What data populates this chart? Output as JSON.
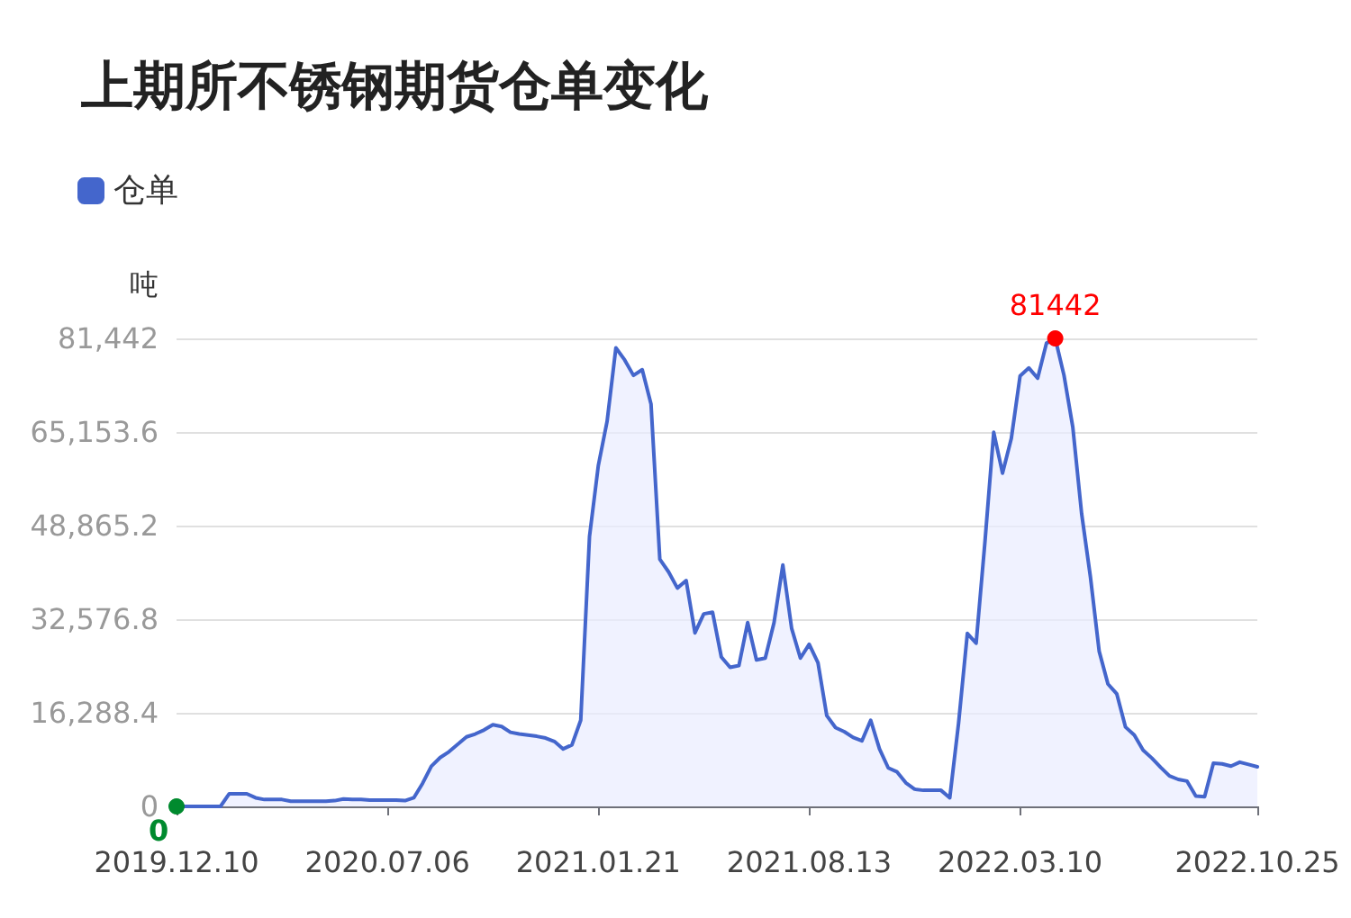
{
  "chart_data": {
    "type": "area",
    "title": "上期所不锈钢期货仓单变化",
    "ylabel": "吨",
    "categories": [
      "2019.12.10",
      null,
      null,
      null,
      null,
      null,
      null,
      null,
      null,
      null,
      null,
      null,
      null,
      null,
      null,
      null,
      null,
      null,
      null,
      null,
      null,
      null,
      null,
      null,
      "2020.07.06",
      null,
      null,
      null,
      null,
      null,
      null,
      null,
      null,
      null,
      null,
      null,
      null,
      null,
      null,
      null,
      null,
      null,
      null,
      null,
      null,
      null,
      null,
      null,
      "2021.01.21",
      null,
      null,
      null,
      null,
      null,
      null,
      null,
      null,
      null,
      null,
      null,
      null,
      null,
      null,
      null,
      null,
      null,
      null,
      null,
      null,
      null,
      null,
      null,
      "2021.08.13",
      null,
      null,
      null,
      null,
      null,
      null,
      null,
      null,
      null,
      null,
      null,
      null,
      null,
      null,
      null,
      null,
      null,
      null,
      null,
      null,
      null,
      null,
      null,
      "2022.03.10",
      null,
      null,
      null,
      null,
      null,
      null,
      null,
      null,
      null,
      null,
      null,
      null,
      null,
      null,
      null,
      null,
      null,
      null,
      null,
      null,
      null,
      null,
      null,
      null,
      null,
      null,
      "2022.10.25"
    ],
    "series": [
      {
        "name": "仓单",
        "color": "#4466cc",
        "values": [
          0,
          0,
          0,
          0,
          0,
          0,
          2200,
          2200,
          2200,
          1500,
          1200,
          1200,
          1200,
          900,
          900,
          900,
          900,
          900,
          1000,
          1300,
          1200,
          1200,
          1100,
          1100,
          1100,
          1100,
          1000,
          1500,
          4000,
          7000,
          8500,
          9500,
          10800,
          12100,
          12600,
          13300,
          14200,
          13900,
          12900,
          12600,
          12400,
          12200,
          11900,
          11300,
          10000,
          10700,
          15000,
          47000,
          59300,
          67000,
          79800,
          77700,
          75000,
          76000,
          70000,
          43000,
          40800,
          38000,
          39300,
          30200,
          33500,
          33800,
          26000,
          24200,
          24500,
          32000,
          25500,
          25800,
          32000,
          42000,
          31000,
          25800,
          28200,
          25000,
          15800,
          13700,
          13000,
          12000,
          11400,
          15000,
          10000,
          6700,
          6000,
          4100,
          3000,
          2800,
          2800,
          2800,
          1500,
          14500,
          30100,
          28400,
          46000,
          65100,
          58000,
          64000,
          74900,
          76300,
          74500,
          80600,
          81442,
          75000,
          66000,
          51000,
          40000,
          27000,
          21300,
          19600,
          13800,
          12400,
          9800,
          8400,
          6800,
          5300,
          4700,
          4400,
          1800,
          1700,
          7500,
          7400,
          7000,
          7700,
          7300,
          6900
        ]
      }
    ],
    "ylim": [
      0,
      81442
    ],
    "yticks": [
      0,
      {
        "value": 16288.4,
        "label": "16,288.4"
      },
      {
        "value": 32576.8,
        "label": "32,576.8"
      },
      {
        "value": 48865.2,
        "label": "48,865.2"
      },
      {
        "value": 65153.6,
        "label": "65,153.6"
      },
      {
        "value": 81442,
        "label": "81,442"
      }
    ],
    "grid": "y",
    "legend": "top left",
    "marker": "none",
    "line_style": "solid",
    "annotations": [
      {
        "text": "81442",
        "y": 81442
      },
      {
        "text": "0",
        "x": "2019.12.10",
        "y": 0
      }
    ]
  }
}
